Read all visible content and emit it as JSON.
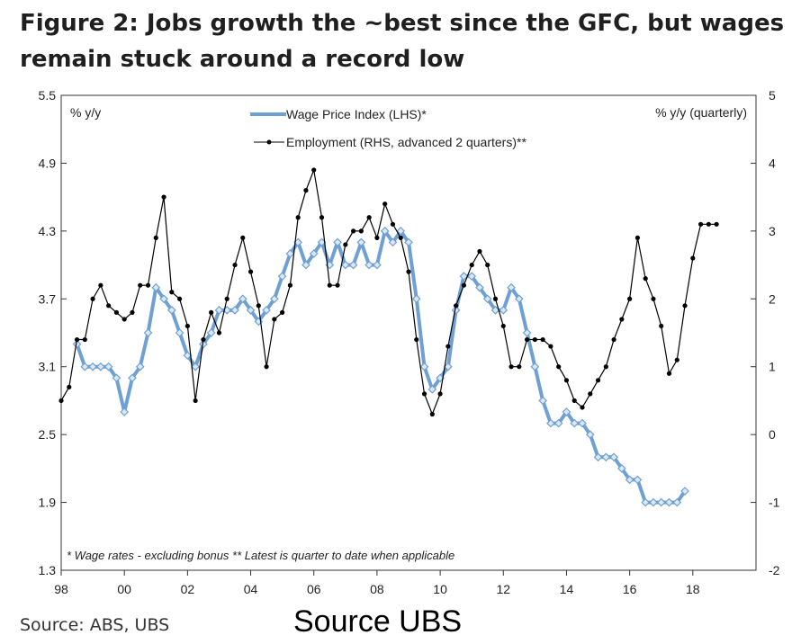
{
  "title_line1": "Figure 2: Jobs growth the ~best since the GFC, but wages",
  "title_line2": "remain stuck around a record low",
  "source_left": "Source: ABS, UBS",
  "source_big": "Source UBS",
  "chart_data": {
    "type": "line",
    "left_axis_label": "% y/y",
    "right_axis_label": "% y/y (quarterly)",
    "note": "* Wage rates - excluding bonus ** Latest is quarter to date when applicable",
    "xlim": [
      1998,
      2020
    ],
    "x_ticks": [
      "98",
      "00",
      "02",
      "04",
      "06",
      "08",
      "10",
      "12",
      "14",
      "16",
      "18"
    ],
    "x_tick_years": [
      1998,
      2000,
      2002,
      2004,
      2006,
      2008,
      2010,
      2012,
      2014,
      2016,
      2018
    ],
    "y_left": {
      "min": 1.3,
      "max": 5.5,
      "ticks": [
        "1.3",
        "1.9",
        "2.5",
        "3.1",
        "3.7",
        "4.3",
        "4.9",
        "5.5"
      ]
    },
    "y_right": {
      "min": -2,
      "max": 5,
      "ticks": [
        "-2",
        "-1",
        "0",
        "1",
        "2",
        "3",
        "4",
        "5"
      ]
    },
    "colors": {
      "wpi": "#6fa0d4",
      "wpi_marker": "#dbe8f6",
      "employment": "#000000"
    },
    "series": [
      {
        "name": "Wage Price Index (LHS)*",
        "axis": "left",
        "x": [
          1998.5,
          1998.75,
          1999,
          1999.25,
          1999.5,
          1999.75,
          2000,
          2000.25,
          2000.5,
          2000.75,
          2001,
          2001.25,
          2001.5,
          2001.75,
          2002,
          2002.25,
          2002.5,
          2002.75,
          2003,
          2003.25,
          2003.5,
          2003.75,
          2004,
          2004.25,
          2004.5,
          2004.75,
          2005,
          2005.25,
          2005.5,
          2005.75,
          2006,
          2006.25,
          2006.5,
          2006.75,
          2007,
          2007.25,
          2007.5,
          2007.75,
          2008,
          2008.25,
          2008.5,
          2008.75,
          2009,
          2009.25,
          2009.5,
          2009.75,
          2010,
          2010.25,
          2010.5,
          2010.75,
          2011,
          2011.25,
          2011.5,
          2011.75,
          2012,
          2012.25,
          2012.5,
          2012.75,
          2013,
          2013.25,
          2013.5,
          2013.75,
          2014,
          2014.25,
          2014.5,
          2014.75,
          2015,
          2015.25,
          2015.5,
          2015.75,
          2016,
          2016.25,
          2016.5,
          2016.75,
          2017,
          2017.25,
          2017.5,
          2017.75
        ],
        "values": [
          3.3,
          3.1,
          3.1,
          3.1,
          3.1,
          3.0,
          2.7,
          3.0,
          3.1,
          3.4,
          3.8,
          3.7,
          3.6,
          3.4,
          3.2,
          3.1,
          3.3,
          3.4,
          3.6,
          3.6,
          3.6,
          3.7,
          3.6,
          3.5,
          3.6,
          3.7,
          3.9,
          4.1,
          4.2,
          4.0,
          4.1,
          4.2,
          4.0,
          4.2,
          4.0,
          4.0,
          4.2,
          4.0,
          4.0,
          4.3,
          4.2,
          4.3,
          4.2,
          3.7,
          3.1,
          2.9,
          3.0,
          3.1,
          3.6,
          3.9,
          3.9,
          3.8,
          3.7,
          3.6,
          3.6,
          3.8,
          3.7,
          3.4,
          3.1,
          2.8,
          2.6,
          2.6,
          2.7,
          2.6,
          2.6,
          2.5,
          2.3,
          2.3,
          2.3,
          2.2,
          2.1,
          2.1,
          1.9,
          1.9,
          1.9,
          1.9,
          1.9,
          2.0
        ]
      },
      {
        "name": "Employment (RHS, advanced 2 quarters)**",
        "axis": "right",
        "x": [
          1998,
          1998.25,
          1998.5,
          1998.75,
          1999,
          1999.25,
          1999.5,
          1999.75,
          2000,
          2000.25,
          2000.5,
          2000.75,
          2001,
          2001.25,
          2001.5,
          2001.75,
          2002,
          2002.25,
          2002.5,
          2002.75,
          2003,
          2003.25,
          2003.5,
          2003.75,
          2004,
          2004.25,
          2004.5,
          2004.75,
          2005,
          2005.25,
          2005.5,
          2005.75,
          2006,
          2006.25,
          2006.5,
          2006.75,
          2007,
          2007.25,
          2007.5,
          2007.75,
          2008,
          2008.25,
          2008.5,
          2008.75,
          2009,
          2009.25,
          2009.5,
          2009.75,
          2010,
          2010.25,
          2010.5,
          2010.75,
          2011,
          2011.25,
          2011.5,
          2011.75,
          2012,
          2012.25,
          2012.5,
          2012.75,
          2013,
          2013.25,
          2013.5,
          2013.75,
          2014,
          2014.25,
          2014.5,
          2014.75,
          2015,
          2015.25,
          2015.5,
          2015.75,
          2016,
          2016.25,
          2016.5,
          2016.75,
          2017,
          2017.25,
          2017.5,
          2017.75,
          2018,
          2018.25,
          2018.5,
          2018.75
        ],
        "values": [
          0.5,
          0.7,
          1.4,
          1.4,
          2.0,
          2.2,
          1.9,
          1.8,
          1.7,
          1.8,
          2.2,
          2.2,
          2.9,
          3.5,
          2.1,
          2.0,
          1.6,
          0.5,
          1.4,
          1.8,
          1.5,
          2.0,
          2.5,
          2.9,
          2.4,
          1.9,
          1.0,
          1.7,
          1.8,
          2.2,
          3.2,
          3.6,
          3.9,
          3.2,
          2.2,
          2.2,
          2.8,
          3.0,
          3.0,
          3.2,
          2.9,
          3.4,
          3.1,
          2.9,
          2.4,
          1.4,
          0.6,
          0.3,
          0.6,
          1.3,
          1.9,
          2.2,
          2.5,
          2.7,
          2.5,
          2.0,
          1.6,
          1.0,
          1.0,
          1.4,
          1.4,
          1.4,
          1.3,
          1.0,
          0.8,
          0.5,
          0.4,
          0.6,
          0.8,
          1.0,
          1.4,
          1.7,
          2.0,
          2.9,
          2.3,
          2.0,
          1.6,
          0.9,
          1.1,
          1.9,
          2.6,
          3.1,
          3.1,
          3.1
        ]
      }
    ]
  }
}
